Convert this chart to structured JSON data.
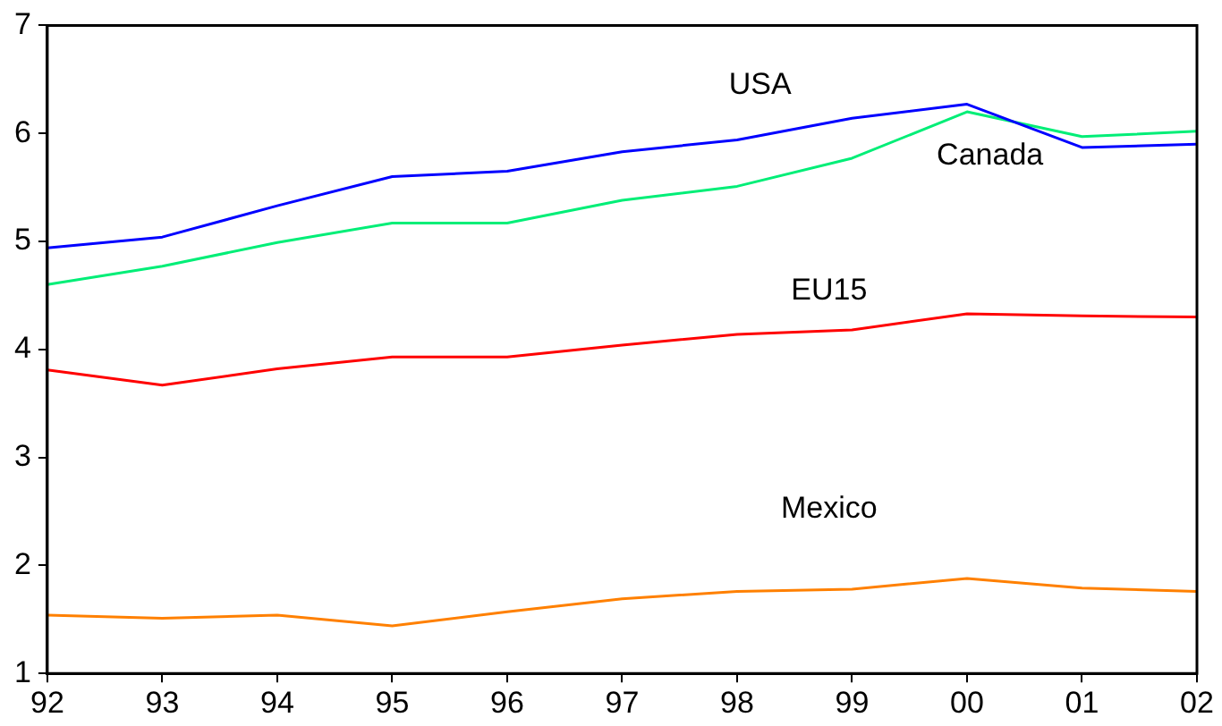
{
  "chart_data": {
    "type": "line",
    "categories": [
      "92",
      "93",
      "94",
      "95",
      "96",
      "97",
      "98",
      "99",
      "00",
      "01",
      "02"
    ],
    "series": [
      {
        "name": "USA",
        "color": "#0000ff",
        "values": [
          4.94,
          5.04,
          5.33,
          5.6,
          5.65,
          5.83,
          5.94,
          6.14,
          6.27,
          5.87,
          5.9
        ]
      },
      {
        "name": "Canada",
        "color": "#00ee77",
        "values": [
          4.6,
          4.77,
          4.99,
          5.17,
          5.17,
          5.38,
          5.51,
          5.77,
          6.2,
          5.97,
          6.02
        ]
      },
      {
        "name": "EU15",
        "color": "#ff0000",
        "values": [
          3.81,
          3.67,
          3.82,
          3.93,
          3.93,
          4.04,
          4.14,
          4.18,
          4.33,
          4.31,
          4.3
        ]
      },
      {
        "name": "Mexico",
        "color": "#ff8000",
        "values": [
          1.54,
          1.51,
          1.54,
          1.44,
          1.57,
          1.69,
          1.76,
          1.78,
          1.88,
          1.79,
          1.76
        ]
      }
    ],
    "ylim": [
      1,
      7
    ],
    "yticks": [
      1,
      2,
      3,
      4,
      5,
      6,
      7
    ],
    "grid": false,
    "legend": false,
    "marker": "none",
    "line_style": "solid"
  }
}
